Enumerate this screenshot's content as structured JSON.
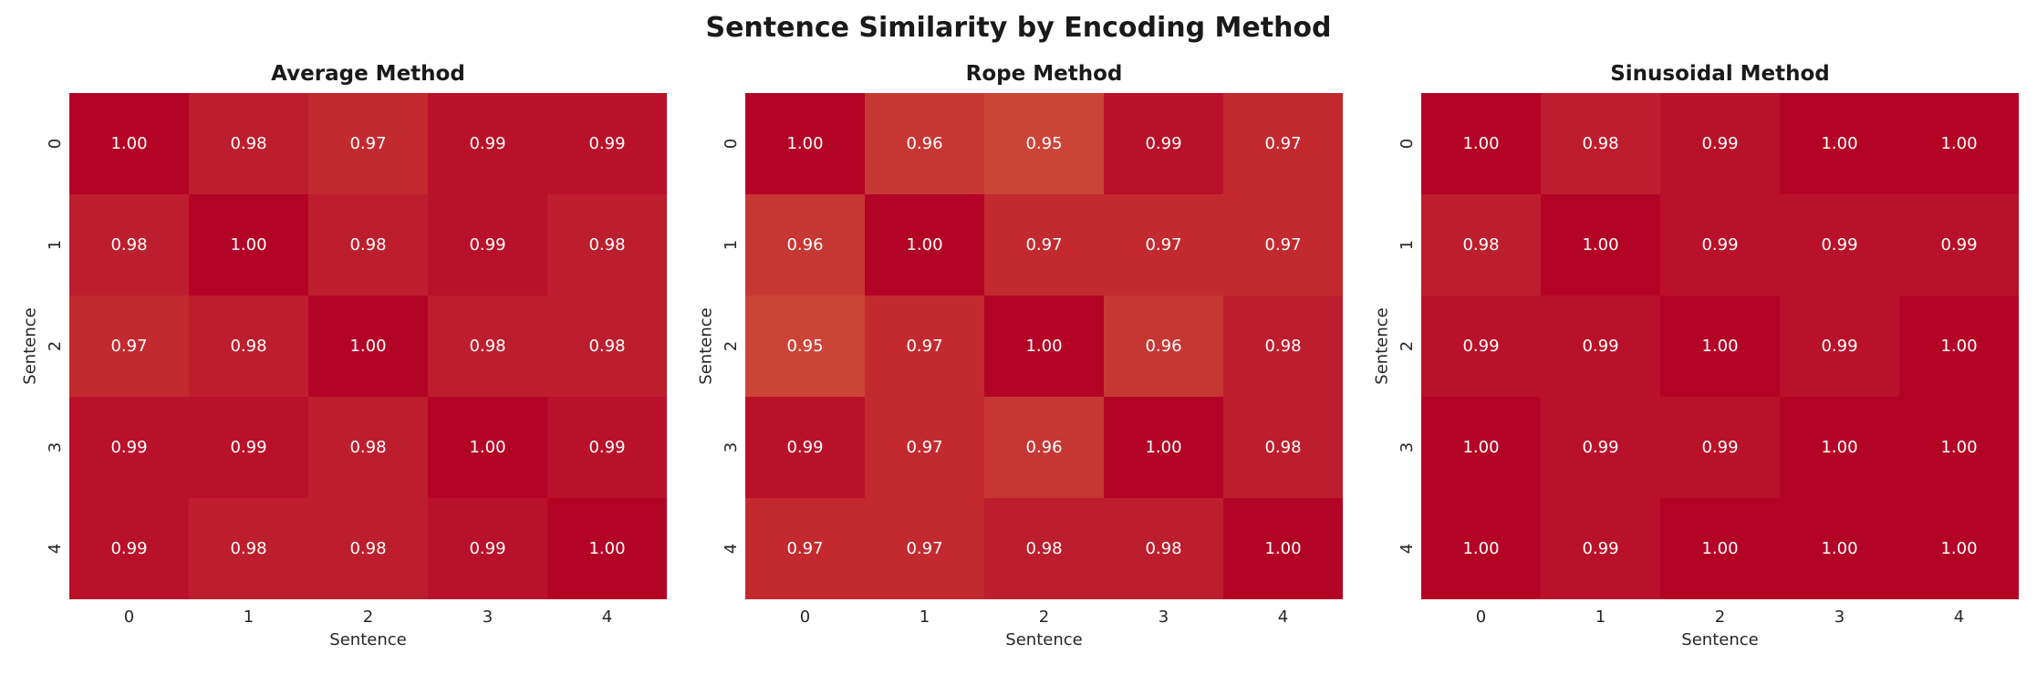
{
  "figure": {
    "title": "Sentence Similarity by Encoding Method"
  },
  "chart_data": [
    {
      "type": "heatmap",
      "title": "Average Method",
      "xlabel": "Sentence",
      "ylabel": "Sentence",
      "x_ticks": [
        "0",
        "1",
        "2",
        "3",
        "4"
      ],
      "y_ticks": [
        "0",
        "1",
        "2",
        "3",
        "4"
      ],
      "values": [
        [
          1.0,
          0.98,
          0.97,
          0.99,
          0.99
        ],
        [
          0.98,
          1.0,
          0.98,
          0.99,
          0.98
        ],
        [
          0.97,
          0.98,
          1.0,
          0.98,
          0.98
        ],
        [
          0.99,
          0.99,
          0.98,
          1.0,
          0.99
        ],
        [
          0.99,
          0.98,
          0.98,
          0.99,
          1.0
        ]
      ],
      "value_range": [
        0.95,
        1.0
      ],
      "colormap": {
        "vmin": 0.95,
        "vmax": 1.0,
        "min_color": "#cb4437",
        "max_color": "#b40426"
      },
      "cell_text_color": "#ffffff"
    },
    {
      "type": "heatmap",
      "title": "Rope Method",
      "xlabel": "Sentence",
      "ylabel": "Sentence",
      "x_ticks": [
        "0",
        "1",
        "2",
        "3",
        "4"
      ],
      "y_ticks": [
        "0",
        "1",
        "2",
        "3",
        "4"
      ],
      "values": [
        [
          1.0,
          0.96,
          0.95,
          0.99,
          0.97
        ],
        [
          0.96,
          1.0,
          0.97,
          0.97,
          0.97
        ],
        [
          0.95,
          0.97,
          1.0,
          0.96,
          0.98
        ],
        [
          0.99,
          0.97,
          0.96,
          1.0,
          0.98
        ],
        [
          0.97,
          0.97,
          0.98,
          0.98,
          1.0
        ]
      ],
      "value_range": [
        0.95,
        1.0
      ],
      "colormap": {
        "vmin": 0.95,
        "vmax": 1.0,
        "min_color": "#cb4437",
        "max_color": "#b40426"
      },
      "cell_text_color": "#ffffff"
    },
    {
      "type": "heatmap",
      "title": "Sinusoidal Method",
      "xlabel": "Sentence",
      "ylabel": "Sentence",
      "x_ticks": [
        "0",
        "1",
        "2",
        "3",
        "4"
      ],
      "y_ticks": [
        "0",
        "1",
        "2",
        "3",
        "4"
      ],
      "values": [
        [
          1.0,
          0.98,
          0.99,
          1.0,
          1.0
        ],
        [
          0.98,
          1.0,
          0.99,
          0.99,
          0.99
        ],
        [
          0.99,
          0.99,
          1.0,
          0.99,
          1.0
        ],
        [
          1.0,
          0.99,
          0.99,
          1.0,
          1.0
        ],
        [
          1.0,
          0.99,
          1.0,
          1.0,
          1.0
        ]
      ],
      "value_range": [
        0.95,
        1.0
      ],
      "colormap": {
        "vmin": 0.95,
        "vmax": 1.0,
        "min_color": "#cb4437",
        "max_color": "#b40426"
      },
      "cell_text_color": "#ffffff"
    }
  ]
}
